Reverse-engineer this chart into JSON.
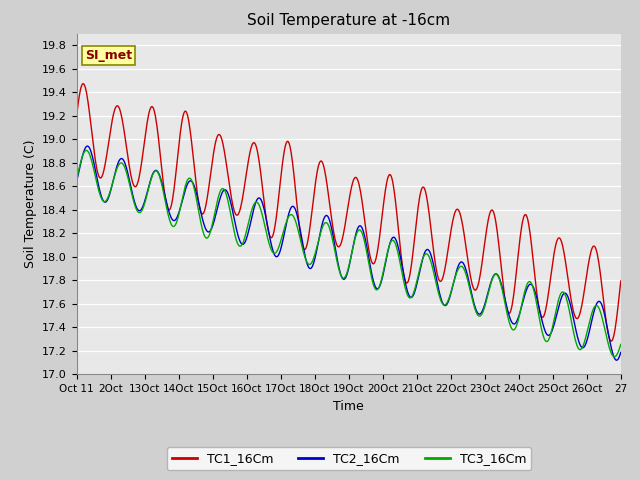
{
  "title": "Soil Temperature at -16cm",
  "xlabel": "Time",
  "ylabel": "Soil Temperature (C)",
  "ylim": [
    17.0,
    19.9
  ],
  "yticks": [
    17.0,
    17.2,
    17.4,
    17.6,
    17.8,
    18.0,
    18.2,
    18.4,
    18.6,
    18.8,
    19.0,
    19.2,
    19.4,
    19.6,
    19.8
  ],
  "legend_labels": [
    "TC1_16Cm",
    "TC2_16Cm",
    "TC3_16Cm"
  ],
  "line_colors": [
    "#cc0000",
    "#0000cc",
    "#00aa00"
  ],
  "annotation_text": "SI_met",
  "annotation_bg": "#ffffa0",
  "annotation_border": "#888800",
  "fig_bg": "#d0d0d0",
  "plot_bg": "#e8e8e8",
  "grid_color": "#ffffff",
  "title_fontsize": 11,
  "axis_fontsize": 9,
  "tick_fontsize": 8
}
